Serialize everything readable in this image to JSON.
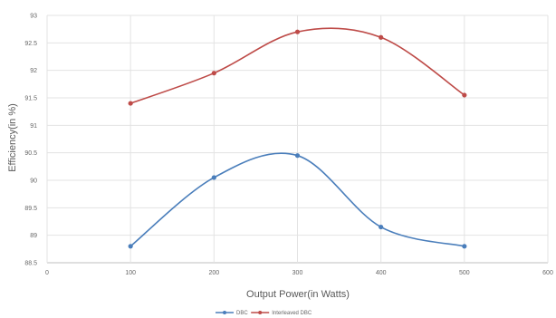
{
  "chart_data": {
    "type": "line",
    "title": "",
    "xlabel": "Output Power(in Watts)",
    "ylabel": "Efficiency(in %)",
    "x_tick_labels": [
      "0",
      "100",
      "200",
      "300",
      "400",
      "500",
      "600"
    ],
    "xlim": [
      0,
      600
    ],
    "y_tick_labels": [
      "88.5",
      "89",
      "89.5",
      "90",
      "90.5",
      "91",
      "91.5",
      "92",
      "92.5",
      "93"
    ],
    "ylim": [
      88.5,
      93
    ],
    "grid": true,
    "legend_position": "bottom",
    "series": [
      {
        "name": "DBC",
        "color": "#4a7ebb",
        "x": [
          100,
          200,
          300,
          400,
          500
        ],
        "y": [
          88.8,
          90.05,
          90.45,
          89.15,
          88.8
        ]
      },
      {
        "name": "Interleaved DBC",
        "color": "#be4b48",
        "x": [
          100,
          200,
          300,
          400,
          500
        ],
        "y": [
          91.4,
          91.95,
          92.7,
          92.6,
          91.55
        ]
      }
    ]
  }
}
